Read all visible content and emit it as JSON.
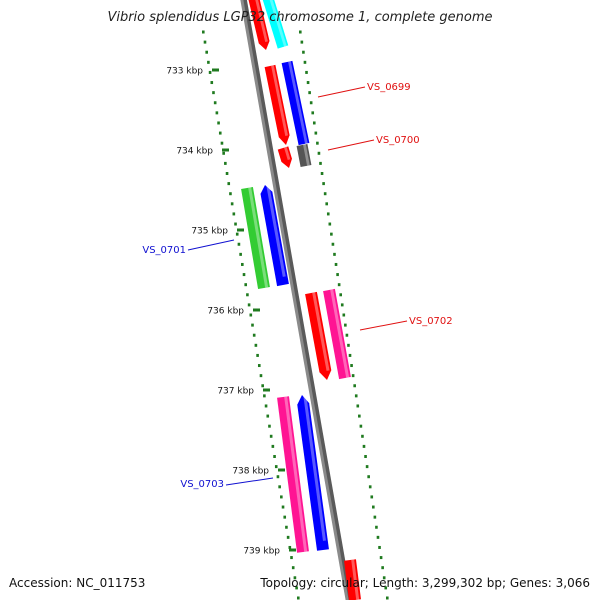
{
  "title": "Vibrio splendidus LGP32 chromosome 1, complete genome",
  "accession": "Accession: NC_011753",
  "topology": "Topology: circular; Length: 3,299,302 bp; Genes: 3,066",
  "ticks": [
    "733 kbp",
    "734 kbp",
    "735 kbp",
    "736 kbp",
    "737 kbp",
    "738 kbp",
    "739 kbp"
  ],
  "gene_labels": [
    {
      "text": "VS_0699",
      "color": "#e01010"
    },
    {
      "text": "VS_0700",
      "color": "#e01010"
    },
    {
      "text": "VS_0701",
      "color": "#1010d0"
    },
    {
      "text": "VS_0702",
      "color": "#e01010"
    },
    {
      "text": "VS_0703",
      "color": "#1010d0"
    }
  ],
  "colors": {
    "backbone": "#8a8a8a",
    "tick_dots": "#1f7a1f",
    "red": "#ff0000",
    "blue": "#0000ff",
    "green": "#33cc33",
    "magenta": "#ff1493",
    "cyan": "#00ffff",
    "gray": "#555555"
  }
}
